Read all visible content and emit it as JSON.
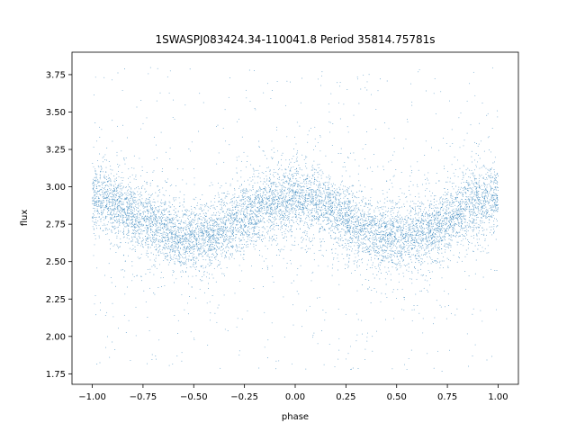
{
  "chart_data": {
    "type": "scatter",
    "title": "1SWASPJ083424.34-110041.8 Period 35814.75781s",
    "xlabel": "phase",
    "ylabel": "flux",
    "xlim": [
      -1.1,
      1.1
    ],
    "ylim": [
      1.68,
      3.9
    ],
    "grid": false,
    "point_color": "#1f77b4",
    "x_ticks": [
      -1.0,
      -0.75,
      -0.5,
      -0.25,
      0.0,
      0.25,
      0.5,
      0.75,
      1.0
    ],
    "x_tick_labels": [
      "−1.00",
      "−0.75",
      "−0.50",
      "−0.25",
      "0.00",
      "0.25",
      "0.50",
      "0.75",
      "1.00"
    ],
    "y_ticks": [
      1.75,
      2.0,
      2.25,
      2.5,
      2.75,
      3.0,
      3.25,
      3.5,
      3.75
    ],
    "y_tick_labels": [
      "1.75",
      "2.00",
      "2.25",
      "2.50",
      "2.75",
      "3.00",
      "3.25",
      "3.50",
      "3.75"
    ],
    "light_curve": {
      "description": "phase-folded flux, approximate sinusoid of two cycles over phase -1 to 1",
      "mean_flux": 2.79,
      "amplitude": 0.13,
      "cycles_per_unit_phase": 1.0,
      "maximum_phase": [
        -1.0,
        0.0,
        1.0
      ],
      "minimum_phase": [
        -0.5,
        0.5
      ],
      "scatter_sigma": 0.11,
      "outlier_range": [
        1.75,
        3.8
      ],
      "n_points": 9000
    }
  }
}
